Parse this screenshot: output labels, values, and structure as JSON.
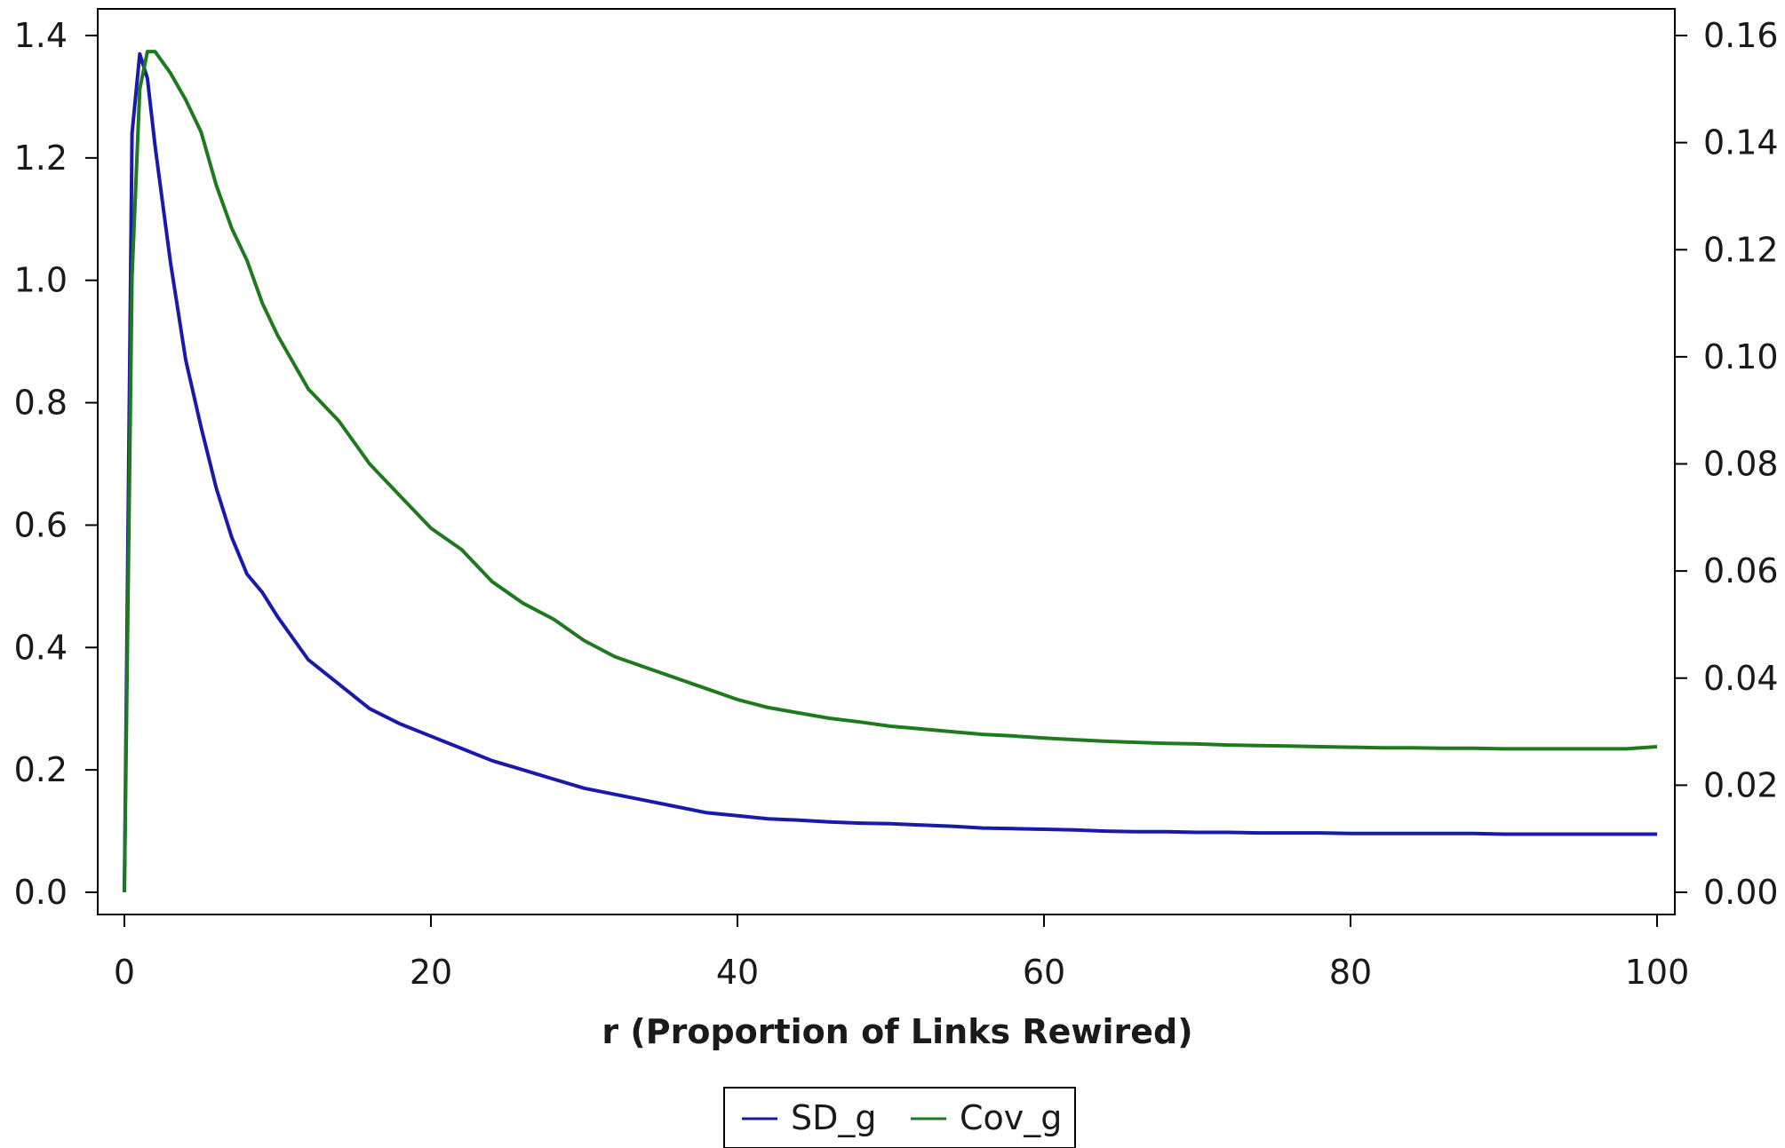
{
  "chart_data": {
    "type": "line",
    "title": "",
    "xlabel": "r (Proportion of Links Rewired)",
    "ylabel": "",
    "y2label": "",
    "xlim": [
      0,
      100
    ],
    "ylim": [
      0,
      1.4
    ],
    "y2lim": [
      0,
      0.16
    ],
    "xticks": [
      0,
      20,
      40,
      60,
      80,
      100
    ],
    "yticks": [
      0.0,
      0.2,
      0.4,
      0.6,
      0.8,
      1.0,
      1.2,
      1.4
    ],
    "y2ticks": [
      0.0,
      0.02,
      0.04,
      0.06,
      0.08,
      0.1,
      0.12,
      0.14,
      0.16
    ],
    "xtick_labels": [
      "0",
      "20",
      "40",
      "60",
      "80",
      "100"
    ],
    "ytick_labels": [
      "0.0",
      "0.2",
      "0.4",
      "0.6",
      "0.8",
      "1.0",
      "1.2",
      "1.4"
    ],
    "y2tick_labels": [
      "0.00",
      "0.02",
      "0.04",
      "0.06",
      "0.08",
      "0.10",
      "0.12",
      "0.14",
      "0.16"
    ],
    "grid": false,
    "legend_position": "bottom-center",
    "x": [
      0,
      0.5,
      1,
      1.5,
      2,
      3,
      4,
      5,
      6,
      7,
      8,
      9,
      10,
      12,
      14,
      16,
      18,
      20,
      22,
      24,
      26,
      28,
      30,
      32,
      34,
      36,
      38,
      40,
      42,
      44,
      46,
      48,
      50,
      52,
      54,
      56,
      58,
      60,
      62,
      64,
      66,
      68,
      70,
      72,
      74,
      76,
      78,
      80,
      82,
      84,
      86,
      88,
      90,
      92,
      94,
      96,
      98,
      100
    ],
    "series": [
      {
        "name": "SD_g",
        "axis": "left",
        "color": "#1a1aaa",
        "values": [
          0.0,
          1.24,
          1.37,
          1.33,
          1.22,
          1.03,
          0.87,
          0.76,
          0.66,
          0.58,
          0.52,
          0.49,
          0.45,
          0.38,
          0.34,
          0.3,
          0.275,
          0.255,
          0.235,
          0.215,
          0.2,
          0.185,
          0.17,
          0.16,
          0.15,
          0.14,
          0.13,
          0.125,
          0.12,
          0.118,
          0.115,
          0.113,
          0.112,
          0.11,
          0.108,
          0.105,
          0.104,
          0.103,
          0.102,
          0.1,
          0.099,
          0.099,
          0.098,
          0.098,
          0.097,
          0.097,
          0.097,
          0.096,
          0.096,
          0.096,
          0.096,
          0.096,
          0.095,
          0.095,
          0.095,
          0.095,
          0.095,
          0.095
        ]
      },
      {
        "name": "Cov_g",
        "axis": "right",
        "color": "#1f7a1f",
        "values": [
          0.0,
          0.115,
          0.15,
          0.157,
          0.157,
          0.153,
          0.148,
          0.142,
          0.132,
          0.124,
          0.118,
          0.11,
          0.104,
          0.094,
          0.088,
          0.08,
          0.074,
          0.068,
          0.064,
          0.058,
          0.054,
          0.051,
          0.047,
          0.044,
          0.042,
          0.04,
          0.038,
          0.036,
          0.0345,
          0.0335,
          0.0325,
          0.0318,
          0.031,
          0.0305,
          0.03,
          0.0295,
          0.0292,
          0.0288,
          0.0285,
          0.0282,
          0.028,
          0.0278,
          0.0277,
          0.0275,
          0.0274,
          0.0273,
          0.0272,
          0.0271,
          0.027,
          0.027,
          0.0269,
          0.0269,
          0.0268,
          0.0268,
          0.0268,
          0.0268,
          0.0268,
          0.0272
        ]
      }
    ]
  }
}
